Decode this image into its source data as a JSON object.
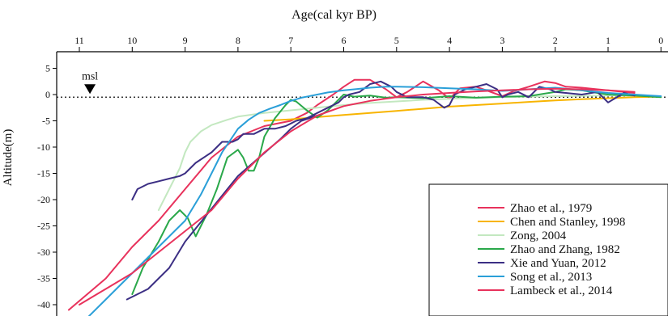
{
  "chart_data": {
    "type": "line",
    "xlabel": "Age(cal kyr BP)",
    "ylabel": "Altitude(m)",
    "xlim": [
      11.4,
      -0.05
    ],
    "ylim": [
      -42,
      7
    ],
    "x_ticks": [
      11,
      10,
      9,
      8,
      7,
      6,
      5,
      4,
      3,
      2,
      1,
      0
    ],
    "y_ticks": [
      5,
      0,
      -5,
      -10,
      -15,
      -20,
      -25,
      -30,
      -35,
      -40
    ],
    "reference_line": {
      "y": -0.5,
      "label": "msl",
      "marker_x": 10.8
    },
    "legend_position": "bottom-right",
    "series": [
      {
        "name": "Zhao et al., 1979",
        "color": "#e8325c",
        "x": [
          11.2,
          10.5,
          10,
          9.5,
          9,
          8.5,
          8,
          7.5,
          7,
          6.7,
          6.5,
          6.2,
          6,
          5.8,
          5.5,
          5.2,
          5,
          4.8,
          4.5,
          4.2,
          4,
          3.8,
          3.5,
          3.3,
          3,
          2.8,
          2.5,
          2.2,
          2,
          1.8,
          1.5,
          1.2,
          1,
          0.5
        ],
        "y": [
          -41,
          -35,
          -29,
          -24,
          -18,
          -12,
          -8,
          -6,
          -5,
          -3.5,
          -2,
          0,
          1.5,
          2.8,
          2.8,
          1,
          -0.5,
          0.5,
          2.5,
          0.8,
          -0.8,
          1.2,
          1.5,
          0.8,
          -0.3,
          0.6,
          1.5,
          2.5,
          2.2,
          1.5,
          1.3,
          1,
          0.8,
          0.3
        ]
      },
      {
        "name": "Chen and Stanley, 1998",
        "color": "#f8b400",
        "x": [
          7.5,
          7,
          6.5,
          6,
          5.5,
          5,
          4.5,
          4,
          3.5,
          3,
          2.5,
          2,
          1.5,
          1,
          0.5,
          0
        ],
        "y": [
          -5,
          -4.7,
          -4.3,
          -3.9,
          -3.5,
          -3.1,
          -2.7,
          -2.3,
          -2,
          -1.7,
          -1.4,
          -1.1,
          -0.9,
          -0.7,
          -0.5,
          -0.4
        ]
      },
      {
        "name": "Zong, 2004",
        "color": "#c3e8c0",
        "x": [
          9.5,
          9.3,
          9.1,
          9,
          8.9,
          8.7,
          8.5,
          8.2,
          8,
          7.5,
          7,
          6.5,
          6,
          5.5,
          5,
          4.5,
          4,
          3,
          2,
          1,
          0.5
        ],
        "y": [
          -22,
          -18,
          -14,
          -11,
          -9,
          -7,
          -5.8,
          -4.8,
          -4.2,
          -3.5,
          -3,
          -2.5,
          -2,
          -1.6,
          -1.3,
          -1,
          -0.8,
          -0.5,
          -0.3,
          -0.2,
          -0.2
        ]
      },
      {
        "name": "Zhao and Zhang, 1982",
        "color": "#2aa84a",
        "x": [
          10,
          9.8,
          9.5,
          9.3,
          9.1,
          8.95,
          8.8,
          8.6,
          8.4,
          8.2,
          8,
          7.9,
          7.8,
          7.7,
          7.6,
          7.5,
          7.3,
          7.1,
          7,
          6.9,
          6.7,
          6.5,
          6.3,
          6.1,
          6,
          5.8,
          5.5,
          5.2,
          5,
          4.5,
          4,
          3.5,
          3,
          2.5,
          2,
          1.8,
          1.5,
          1.2,
          1,
          0.5,
          0
        ],
        "y": [
          -38,
          -33,
          -28,
          -24,
          -22,
          -23.5,
          -27,
          -23,
          -18,
          -12,
          -10.5,
          -12,
          -14.5,
          -14.5,
          -12,
          -8,
          -4.5,
          -2,
          -1,
          -1.3,
          -3,
          -4.4,
          -3,
          -1,
          0,
          -0.4,
          -0.2,
          -0.6,
          -0.5,
          -0.7,
          -0.3,
          -0.6,
          -0.4,
          -0.3,
          0.5,
          1,
          0.8,
          0.3,
          0,
          -0.2,
          -0.5
        ]
      },
      {
        "name": "Xie and Yuan, 2012",
        "color": "#3c2f84",
        "x": [
          10,
          9.9,
          9.7,
          9.5,
          9.3,
          9.1,
          9,
          8.8,
          8.5,
          8.3,
          8.1,
          8,
          7.9,
          7.7,
          7.5,
          7.3,
          7.1,
          7,
          6.9,
          6.7,
          6.5,
          6.3,
          6.1,
          6,
          5.9,
          5.7,
          5.5,
          5.3,
          5.1,
          5,
          4.8,
          4.5,
          4.3,
          4.1,
          4,
          3.9,
          3.7,
          3.5,
          3.3,
          3.1,
          3,
          2.9,
          2.7,
          2.5,
          2.3,
          2.1,
          2,
          1.8,
          1.5,
          1.2,
          1,
          0.7,
          0.5
        ],
        "y": [
          -20,
          -18,
          -17,
          -16.5,
          -16,
          -15.5,
          -15,
          -13,
          -11,
          -9,
          -9,
          -8.5,
          -7.5,
          -7.5,
          -6.5,
          -6.5,
          -6,
          -5.5,
          -5,
          -4.5,
          -3.5,
          -2.5,
          -1.5,
          -0.5,
          0,
          0.5,
          2,
          2.5,
          1.5,
          0.5,
          -0.5,
          -0.5,
          -1,
          -2.5,
          -2,
          0,
          1,
          1.5,
          2,
          1,
          -0.5,
          0,
          0.5,
          -0.5,
          1.5,
          1,
          0.5,
          0.3,
          0,
          0.5,
          -1.5,
          0.3,
          -0.2
        ]
      },
      {
        "name": "Xie and Yuan, 2012",
        "color": "#3c2f84",
        "x": [
          10.1,
          9.7,
          9.3,
          9,
          8.6,
          8.2,
          8,
          7.6,
          7.2,
          7,
          6.8,
          6.5
        ],
        "y": [
          -39,
          -37,
          -33,
          -28,
          -23,
          -18,
          -15.5,
          -12,
          -8.5,
          -6.5,
          -5,
          -4
        ]
      },
      {
        "name": "Song et al., 2013",
        "color": "#2a9fd8",
        "x": [
          11,
          10.5,
          10,
          9.5,
          9,
          8.7,
          8.5,
          8.3,
          8.1,
          8,
          7.8,
          7.6,
          7.4,
          7.2,
          7,
          6.8,
          6.5,
          6.3,
          6,
          5.8,
          5.5,
          5.2,
          5,
          4.5,
          4,
          3.5,
          3,
          2.8,
          2.5,
          2.2,
          2,
          1.8,
          1.5,
          1.2,
          1,
          0.5,
          0
        ],
        "y": [
          -44,
          -39,
          -34,
          -29,
          -24,
          -19,
          -15,
          -11,
          -8,
          -6.5,
          -4.8,
          -3.5,
          -2.7,
          -2,
          -1.2,
          -0.6,
          0,
          0.4,
          0.8,
          1,
          1.3,
          1.5,
          1.5,
          1.4,
          1.2,
          1,
          0.7,
          0.8,
          1,
          1.2,
          1.3,
          1.1,
          0.8,
          0.5,
          0.3,
          0,
          -0.3
        ]
      },
      {
        "name": "Lambeck et al., 2014",
        "color": "#e8325c",
        "x": [
          11,
          10,
          9,
          8.5,
          8,
          7.5,
          7,
          6.5,
          6,
          5.5,
          5,
          4.5,
          4,
          3.5,
          3,
          2.5,
          2,
          1.5,
          1,
          0.5
        ],
        "y": [
          -40,
          -34,
          -26,
          -22,
          -16,
          -11,
          -7,
          -4,
          -2.2,
          -1.2,
          -0.5,
          0,
          0.3,
          0.6,
          0.8,
          1,
          1.1,
          1,
          0.8,
          0.5
        ]
      }
    ]
  }
}
